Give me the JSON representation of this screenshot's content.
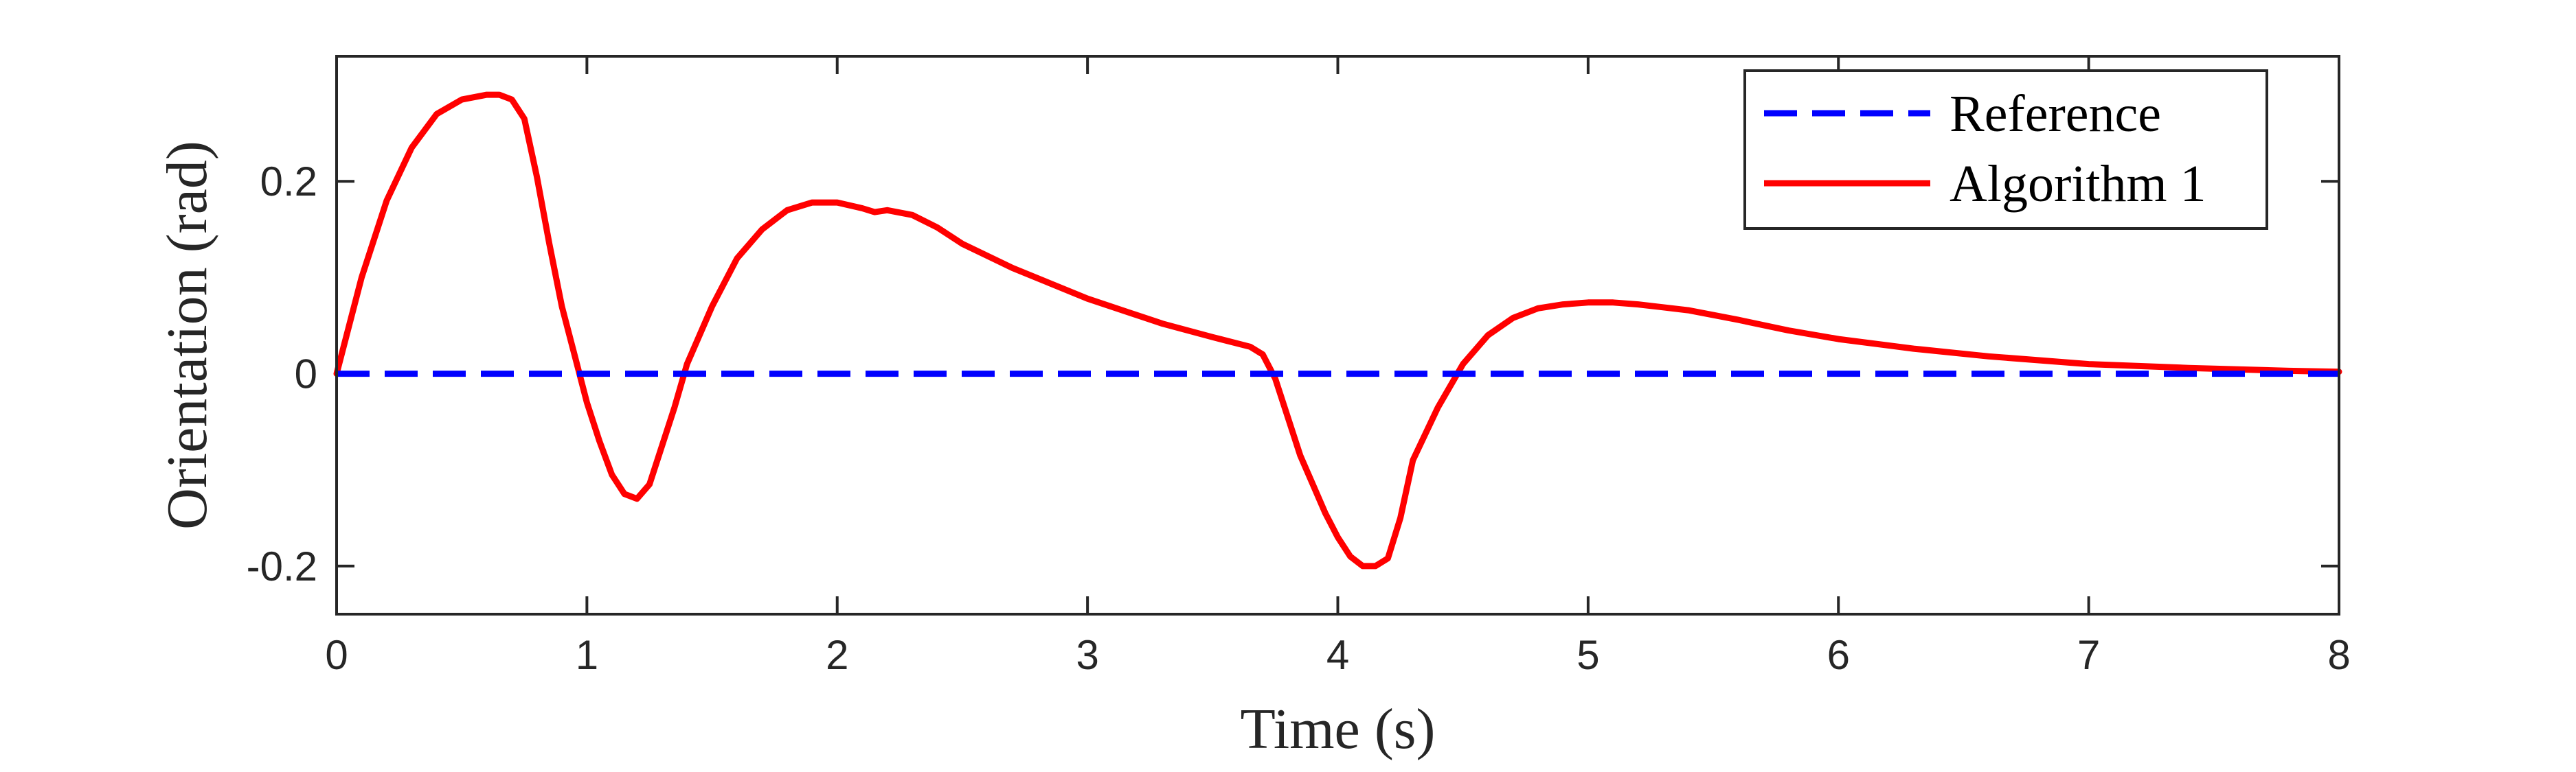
{
  "chart_data": {
    "type": "line",
    "xlabel": "Time (s)",
    "ylabel": "Orientation (rad)",
    "xlim": [
      0,
      8
    ],
    "ylim": [
      -0.25,
      0.33
    ],
    "xticks": [
      0,
      1,
      2,
      3,
      4,
      5,
      6,
      7,
      8
    ],
    "xtick_labels": [
      "0",
      "1",
      "2",
      "3",
      "4",
      "5",
      "6",
      "7",
      "8"
    ],
    "yticks": [
      -0.2,
      0,
      0.2
    ],
    "ytick_labels": [
      "-0.2",
      "0",
      "0.2"
    ],
    "grid": false,
    "legend_position": "top-right",
    "series": [
      {
        "name": "Reference",
        "color": "#0000ff",
        "style": "dashed",
        "x": [
          0,
          8
        ],
        "y": [
          0,
          0
        ]
      },
      {
        "name": "Algorithm 1",
        "color": "#ff0000",
        "style": "solid",
        "x": [
          0,
          0.1,
          0.2,
          0.3,
          0.4,
          0.5,
          0.6,
          0.65,
          0.7,
          0.75,
          0.8,
          0.85,
          0.9,
          0.95,
          1.0,
          1.05,
          1.1,
          1.15,
          1.2,
          1.25,
          1.3,
          1.35,
          1.4,
          1.5,
          1.6,
          1.7,
          1.8,
          1.9,
          2.0,
          2.1,
          2.15,
          2.2,
          2.3,
          2.4,
          2.5,
          2.7,
          3.0,
          3.3,
          3.5,
          3.65,
          3.7,
          3.75,
          3.8,
          3.85,
          3.9,
          3.95,
          4.0,
          4.05,
          4.1,
          4.15,
          4.2,
          4.25,
          4.3,
          4.4,
          4.5,
          4.6,
          4.7,
          4.8,
          4.9,
          5.0,
          5.1,
          5.2,
          5.4,
          5.6,
          5.8,
          6.0,
          6.3,
          6.6,
          7.0,
          7.4,
          7.8,
          8.0
        ],
        "y": [
          0,
          0.1,
          0.18,
          0.235,
          0.27,
          0.285,
          0.29,
          0.29,
          0.285,
          0.265,
          0.205,
          0.135,
          0.07,
          0.02,
          -0.03,
          -0.07,
          -0.105,
          -0.125,
          -0.13,
          -0.115,
          -0.075,
          -0.035,
          0.01,
          0.07,
          0.12,
          0.15,
          0.17,
          0.178,
          0.178,
          0.172,
          0.168,
          0.17,
          0.165,
          0.152,
          0.135,
          0.11,
          0.078,
          0.052,
          0.038,
          0.028,
          0.02,
          -0.005,
          -0.045,
          -0.085,
          -0.115,
          -0.145,
          -0.17,
          -0.19,
          -0.2,
          -0.2,
          -0.192,
          -0.15,
          -0.09,
          -0.035,
          0.01,
          0.04,
          0.058,
          0.068,
          0.072,
          0.074,
          0.074,
          0.072,
          0.066,
          0.056,
          0.045,
          0.036,
          0.026,
          0.018,
          0.01,
          0.006,
          0.003,
          0.002
        ]
      }
    ]
  }
}
